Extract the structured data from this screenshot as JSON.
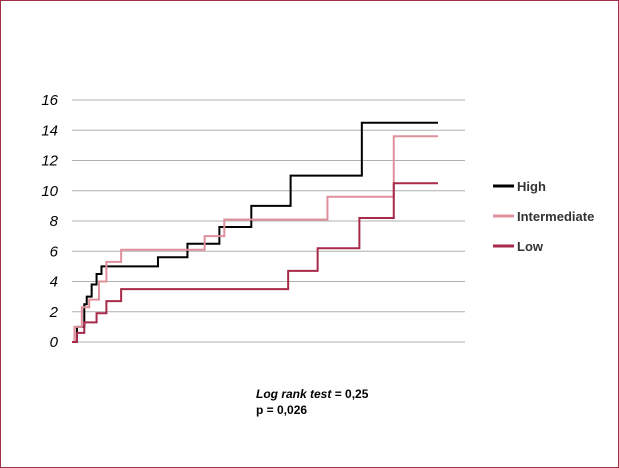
{
  "chart_data": {
    "type": "line",
    "step": true,
    "xlabel": "",
    "ylabel": "",
    "ylim": [
      0,
      16
    ],
    "yticks": [
      "0",
      "2",
      "4",
      "6",
      "8",
      "10",
      "12",
      "14",
      "16"
    ],
    "grid": true,
    "legend_position": "right",
    "series": [
      {
        "name": "High",
        "color": "#000000",
        "x": [
          0,
          2,
          5,
          6,
          8,
          10,
          12,
          16,
          22,
          35,
          47,
          60,
          73,
          78,
          89,
          104,
          118,
          149
        ],
        "y": [
          0,
          1.0,
          2.5,
          3.0,
          3.8,
          4.5,
          5.0,
          5.0,
          5.0,
          5.6,
          6.5,
          7.6,
          9.0,
          9.0,
          11.0,
          11.0,
          14.5,
          14.5
        ]
      },
      {
        "name": "Intermediate",
        "color": "#e0909c",
        "x": [
          0,
          1,
          4,
          7,
          11,
          14,
          20,
          28,
          40,
          54,
          62,
          94,
          104,
          123,
          131,
          149
        ],
        "y": [
          0,
          1.0,
          2.3,
          2.8,
          4.0,
          5.3,
          6.1,
          6.1,
          6.1,
          7.0,
          8.1,
          8.1,
          9.6,
          9.6,
          13.6,
          13.6
        ]
      },
      {
        "name": "Low",
        "color": "#a82a4a",
        "x": [
          0,
          2,
          5,
          10,
          14,
          20,
          80,
          88,
          100,
          110,
          117,
          131,
          149
        ],
        "y": [
          0,
          0.6,
          1.3,
          1.9,
          2.7,
          3.5,
          3.5,
          4.7,
          6.2,
          6.2,
          8.2,
          10.5,
          10.5
        ]
      }
    ]
  },
  "annotation": {
    "stat_name": "Log rank test",
    "stat_value": " = 0,25",
    "p_line": "p = 0,026"
  }
}
